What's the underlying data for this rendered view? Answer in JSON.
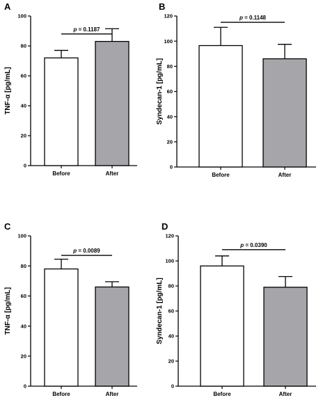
{
  "chart_data": [
    {
      "panel": "A",
      "type": "bar",
      "ylabel": "TNF-α [pg/mL]",
      "categories": [
        "Before",
        "After"
      ],
      "values": [
        72,
        83
      ],
      "errors": [
        5,
        8.5
      ],
      "colors": [
        "#ffffff",
        "#a6a6aa"
      ],
      "ylim": [
        0,
        100
      ],
      "yticks": [
        "0",
        "20",
        "40",
        "60",
        "80",
        "100"
      ],
      "pvalue_symbol": "p",
      "pvalue_text": " = 0.1187",
      "bracket_y": 88
    },
    {
      "panel": "B",
      "type": "bar",
      "ylabel": "Syndecan-1 [pg/mL]",
      "categories": [
        "Before",
        "After"
      ],
      "values": [
        96.5,
        86
      ],
      "errors": [
        14.5,
        11.5
      ],
      "colors": [
        "#ffffff",
        "#a6a6aa"
      ],
      "ylim": [
        0,
        120
      ],
      "yticks": [
        "0",
        "20",
        "40",
        "60",
        "80",
        "100",
        "120"
      ],
      "pvalue_symbol": "p",
      "pvalue_text": " = 0.1148",
      "bracket_y": 115
    },
    {
      "panel": "C",
      "type": "bar",
      "ylabel": "TNF-α [pg/mL]",
      "categories": [
        "Before",
        "After"
      ],
      "values": [
        78,
        66
      ],
      "errors": [
        6.5,
        3.5
      ],
      "colors": [
        "#ffffff",
        "#a6a6aa"
      ],
      "ylim": [
        0,
        100
      ],
      "yticks": [
        "0",
        "20",
        "40",
        "60",
        "80",
        "100"
      ],
      "pvalue_symbol": "p",
      "pvalue_text": " = 0.0089",
      "bracket_y": 87
    },
    {
      "panel": "D",
      "type": "bar",
      "ylabel": "Syndecan-1 [pg/mL]",
      "categories": [
        "Before",
        "After"
      ],
      "values": [
        96,
        79
      ],
      "errors": [
        8,
        8.5
      ],
      "colors": [
        "#ffffff",
        "#a6a6aa"
      ],
      "ylim": [
        0,
        120
      ],
      "yticks": [
        "0",
        "20",
        "40",
        "60",
        "80",
        "100",
        "120"
      ],
      "pvalue_symbol": "p",
      "pvalue_text": " = 0.0390",
      "bracket_y": 109
    }
  ]
}
